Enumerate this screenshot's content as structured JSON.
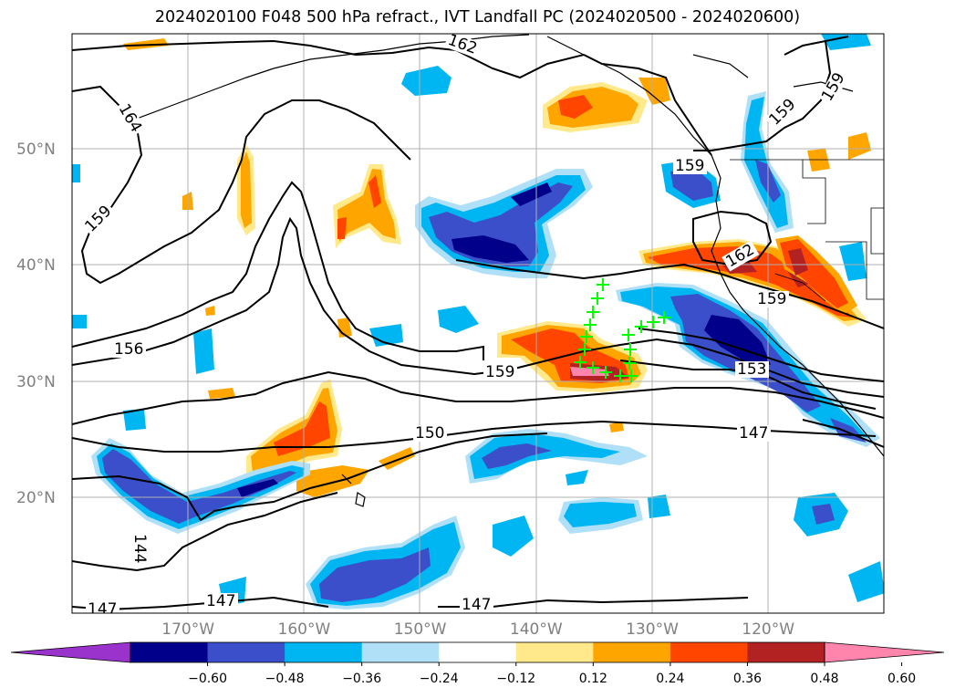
{
  "title": "2024020100 F048 500 hPa refract., IVT Landfall PC (2024020500 - 2024020600)",
  "lat_labels": [
    {
      "lat": 50,
      "text": "50°N"
    },
    {
      "lat": 40,
      "text": "40°N"
    },
    {
      "lat": 30,
      "text": "30°N"
    },
    {
      "lat": 20,
      "text": "20°N"
    }
  ],
  "lon_labels": [
    {
      "lon": -170,
      "text": "170°W"
    },
    {
      "lon": -160,
      "text": "160°W"
    },
    {
      "lon": -150,
      "text": "150°W"
    },
    {
      "lon": -140,
      "text": "140°W"
    },
    {
      "lon": -130,
      "text": "130°W"
    },
    {
      "lon": -120,
      "text": "120°W"
    }
  ],
  "contour_labels": [
    "162",
    "164",
    "159",
    "159",
    "159",
    "159",
    "162",
    "159",
    "156",
    "159",
    "153",
    "150",
    "147",
    "144",
    "147",
    "147",
    "147"
  ],
  "colorbar": {
    "colors": [
      "#9933cc",
      "#00008b",
      "#3a4fc9",
      "#00b6f2",
      "#afe0f7",
      "#ffffff",
      "#ffe98a",
      "#ffa500",
      "#ff4500",
      "#b22222",
      "#ff85ad"
    ],
    "labels": [
      "−0.60",
      "−0.48",
      "−0.36",
      "−0.24",
      "−0.12",
      "0.12",
      "0.24",
      "0.36",
      "0.48",
      "0.60"
    ]
  },
  "marker_color": "#00ff00"
}
